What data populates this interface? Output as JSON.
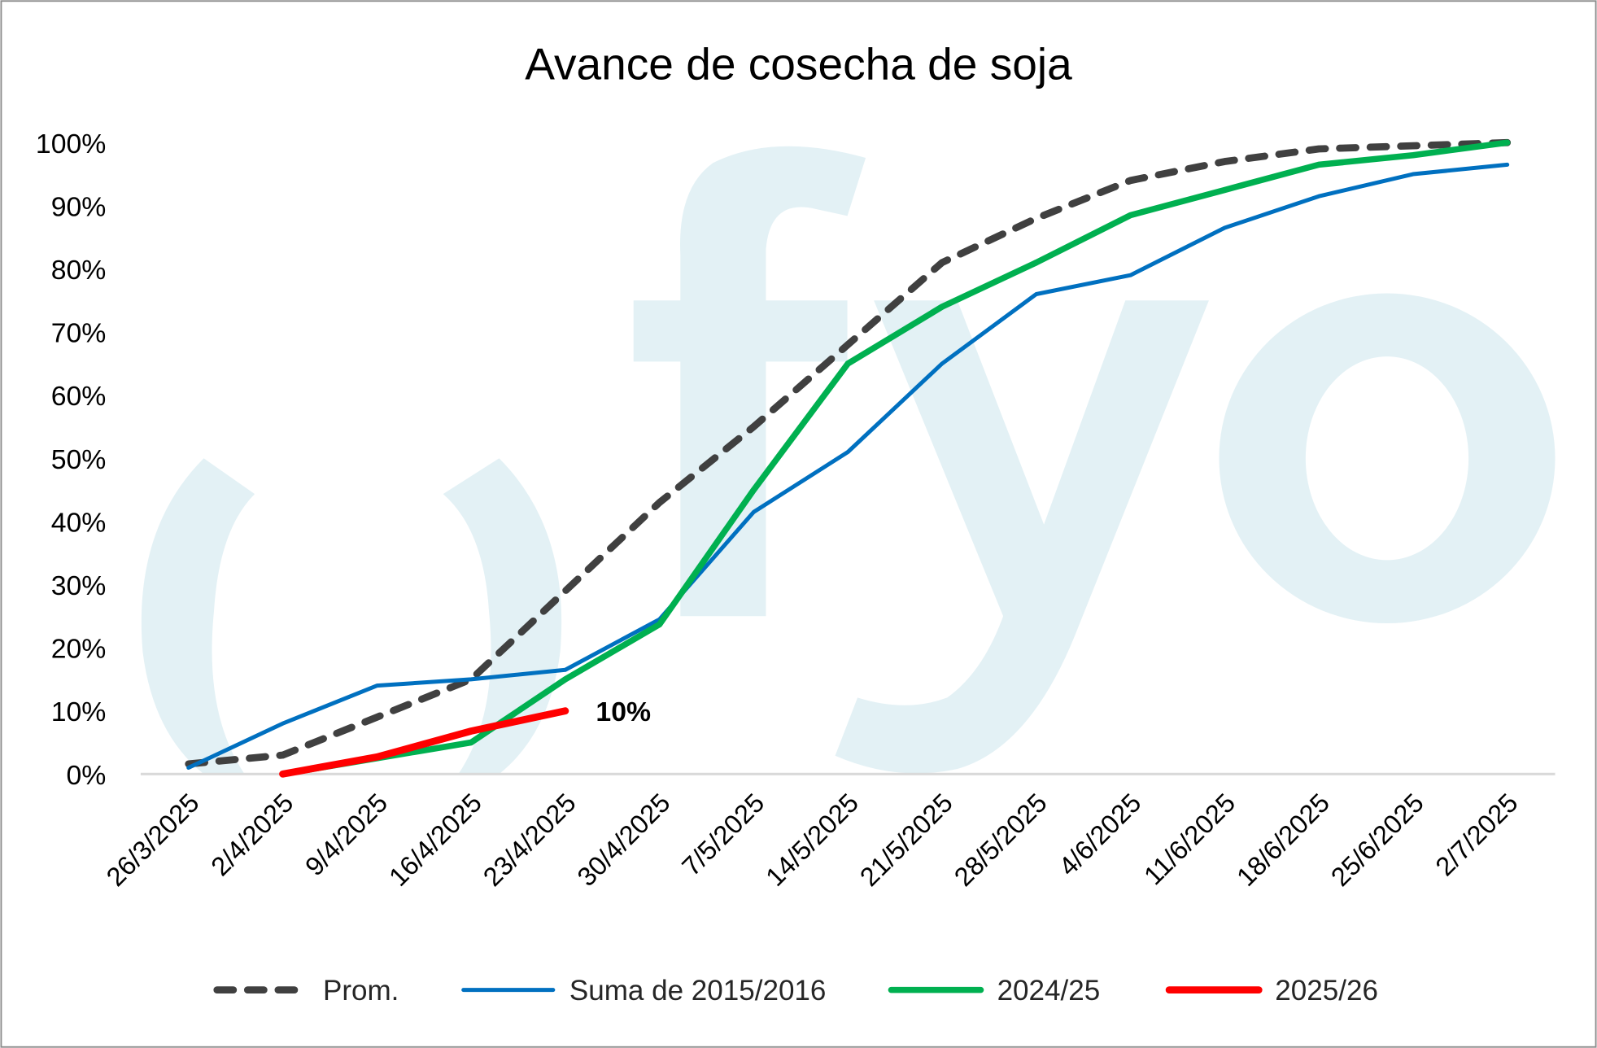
{
  "chart_data": {
    "type": "line",
    "title": "Avance de cosecha de soja",
    "xlabel": "",
    "ylabel": "",
    "ylim": [
      0,
      100
    ],
    "yticks": [
      "0%",
      "10%",
      "20%",
      "30%",
      "40%",
      "50%",
      "60%",
      "70%",
      "80%",
      "90%",
      "100%"
    ],
    "categories": [
      "26/3/2025",
      "2/4/2025",
      "9/4/2025",
      "16/4/2025",
      "23/4/2025",
      "30/4/2025",
      "7/5/2025",
      "14/5/2025",
      "21/5/2025",
      "28/5/2025",
      "4/6/2025",
      "11/6/2025",
      "18/6/2025",
      "25/6/2025",
      "2/7/2025"
    ],
    "series": [
      {
        "name": "Prom.",
        "color": "#404040",
        "dashed": true,
        "values": [
          1.6,
          3,
          9,
          15,
          29,
          43,
          55,
          68,
          81,
          88,
          94,
          97,
          99,
          99.5,
          100
        ]
      },
      {
        "name": "Suma de 2015/2016",
        "color": "#0070c0",
        "dashed": false,
        "values": [
          1,
          8,
          14,
          15,
          16.5,
          24.5,
          41.5,
          51,
          65,
          76,
          79,
          86.5,
          91.5,
          95,
          96.5
        ]
      },
      {
        "name": "2024/25",
        "color": "#00b050",
        "dashed": false,
        "values": [
          null,
          0,
          2.5,
          5,
          15,
          23.7,
          45,
          65,
          74,
          81,
          88.5,
          92.5,
          96.5,
          98,
          100
        ]
      },
      {
        "name": "2025/26",
        "color": "#ff0000",
        "dashed": false,
        "values": [
          null,
          0,
          2.7,
          6.8,
          10,
          null,
          null,
          null,
          null,
          null,
          null,
          null,
          null,
          null,
          null
        ]
      }
    ],
    "annotations": [
      {
        "text": "10%",
        "series": "2025/26",
        "category": "23/4/2025"
      }
    ],
    "legend": "bottom",
    "grid": false
  },
  "watermark": "fyo"
}
